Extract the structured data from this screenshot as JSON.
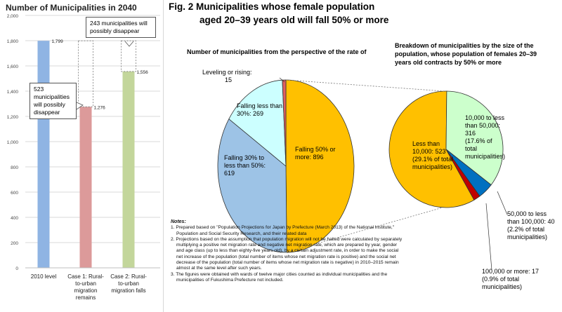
{
  "left_title": "Number of Municipalities in 2040",
  "fig_title_line1": "Fig. 2  Municipalities whose female population",
  "fig_title_line2": "aged 20–39 years old will fall 50% or more",
  "callouts": {
    "top": "243 municipalities will possibly disappear",
    "left": "523 municipalities will possibly disappear"
  },
  "notes": {
    "heading": "Notes:",
    "items": [
      "1. Prepared based on \"Population Projections for Japan by Prefecture (March 2013) of the National Institute,\" Population and Social Security Research, and their related data",
      "2. Projections based on the assumption that population migration will not be halted were calculated by separately multiplying a positive net migration rate and negative net migration rate, which are prepared by year, gender and age class (up to less than eighty-five years old), by a certain adjustment rate, in order to make the social net increase of the population (total number of items whose net migration rate is positive) and the social net decrease of the population (total number of items whose net migration rate is negative) in 2010–2015 remain almost at the same level after such years.",
      "3. The figures were obtained with wards of twelve major cities counted as individual municipalities and the municipalities of Fukushima Prefecture not included."
    ]
  },
  "chart_data": [
    {
      "type": "bar",
      "title": "Number of Municipalities in 2040",
      "categories": [
        "2010 level",
        "Case 1: Rural-to-urban migration remains",
        "Case 2: Rural-to-urban migration falls"
      ],
      "values": [
        1799,
        1276,
        1556
      ],
      "data_labels": [
        "1,799",
        "1,276",
        "1,556"
      ],
      "colors": [
        "#8fb4e3",
        "#dc9a9a",
        "#c3d69b"
      ],
      "ylim": [
        0,
        2000
      ],
      "yticks": [
        0,
        200,
        400,
        600,
        800,
        1000,
        1200,
        1400,
        1600,
        1800,
        2000
      ],
      "ytick_labels": [
        "0",
        "200",
        "400",
        "600",
        "800",
        "1,000",
        "1,200",
        "1,400",
        "1,600",
        "1,800",
        "2,000"
      ],
      "grid": true
    },
    {
      "type": "pie",
      "title": "Number of municipalities from the perspective of the rate of",
      "slices": [
        {
          "label": "Falling 50% or more: 896",
          "value": 896,
          "color": "#ffc000"
        },
        {
          "label": "Falling 30% to less than 50%: 619",
          "value": 619,
          "color": "#9dc3e6"
        },
        {
          "label": "Falling less than 30%: 269",
          "value": 269,
          "color": "#ccffff"
        },
        {
          "label": "Leveling or rising: 15",
          "value": 15,
          "color": "#e06060"
        }
      ]
    },
    {
      "type": "pie",
      "title": "Breakdown of municipalities by the size of the population, whose population of females 20–39 years old contracts by 50% or more",
      "slices": [
        {
          "label": "Less than 10,000: 523 (29.1% of total municipalities)",
          "value": 523,
          "color": "#ffc000"
        },
        {
          "label": "10,000 to less than 50,000: 316 (17.6% of total municipalities)",
          "value": 316,
          "color": "#ccffcc"
        },
        {
          "label": "50,000 to less than 100,000: 40 (2.2% of total municipalities)",
          "value": 40,
          "color": "#0070c0"
        },
        {
          "label": "100,000 or more: 17 (0.9% of total municipalities)",
          "value": 17,
          "color": "#c00000"
        }
      ]
    }
  ],
  "pie1_labels": {
    "yellow": [
      "Falling 50% or",
      "more: 896"
    ],
    "blue": [
      "Falling 30% to",
      "less than 50%:",
      "619"
    ],
    "cyan": [
      "Falling less than",
      "30%: 269"
    ],
    "red": [
      "Leveling or rising:",
      "15"
    ]
  },
  "pie2_labels": {
    "yellow": [
      "Less than",
      "10,000: 523",
      "(29.1% of total",
      "municipalities)"
    ],
    "green": [
      "10,000 to less",
      "than 50,000:",
      "316",
      "(17.6% of",
      "total",
      "municipalities)"
    ],
    "blue": [
      "50,000 to less",
      "than 100,000: 40",
      "(2.2% of total",
      "municipalities)"
    ],
    "red": [
      "100,000 or more: 17",
      "(0.9% of total",
      "municipalities)"
    ]
  }
}
